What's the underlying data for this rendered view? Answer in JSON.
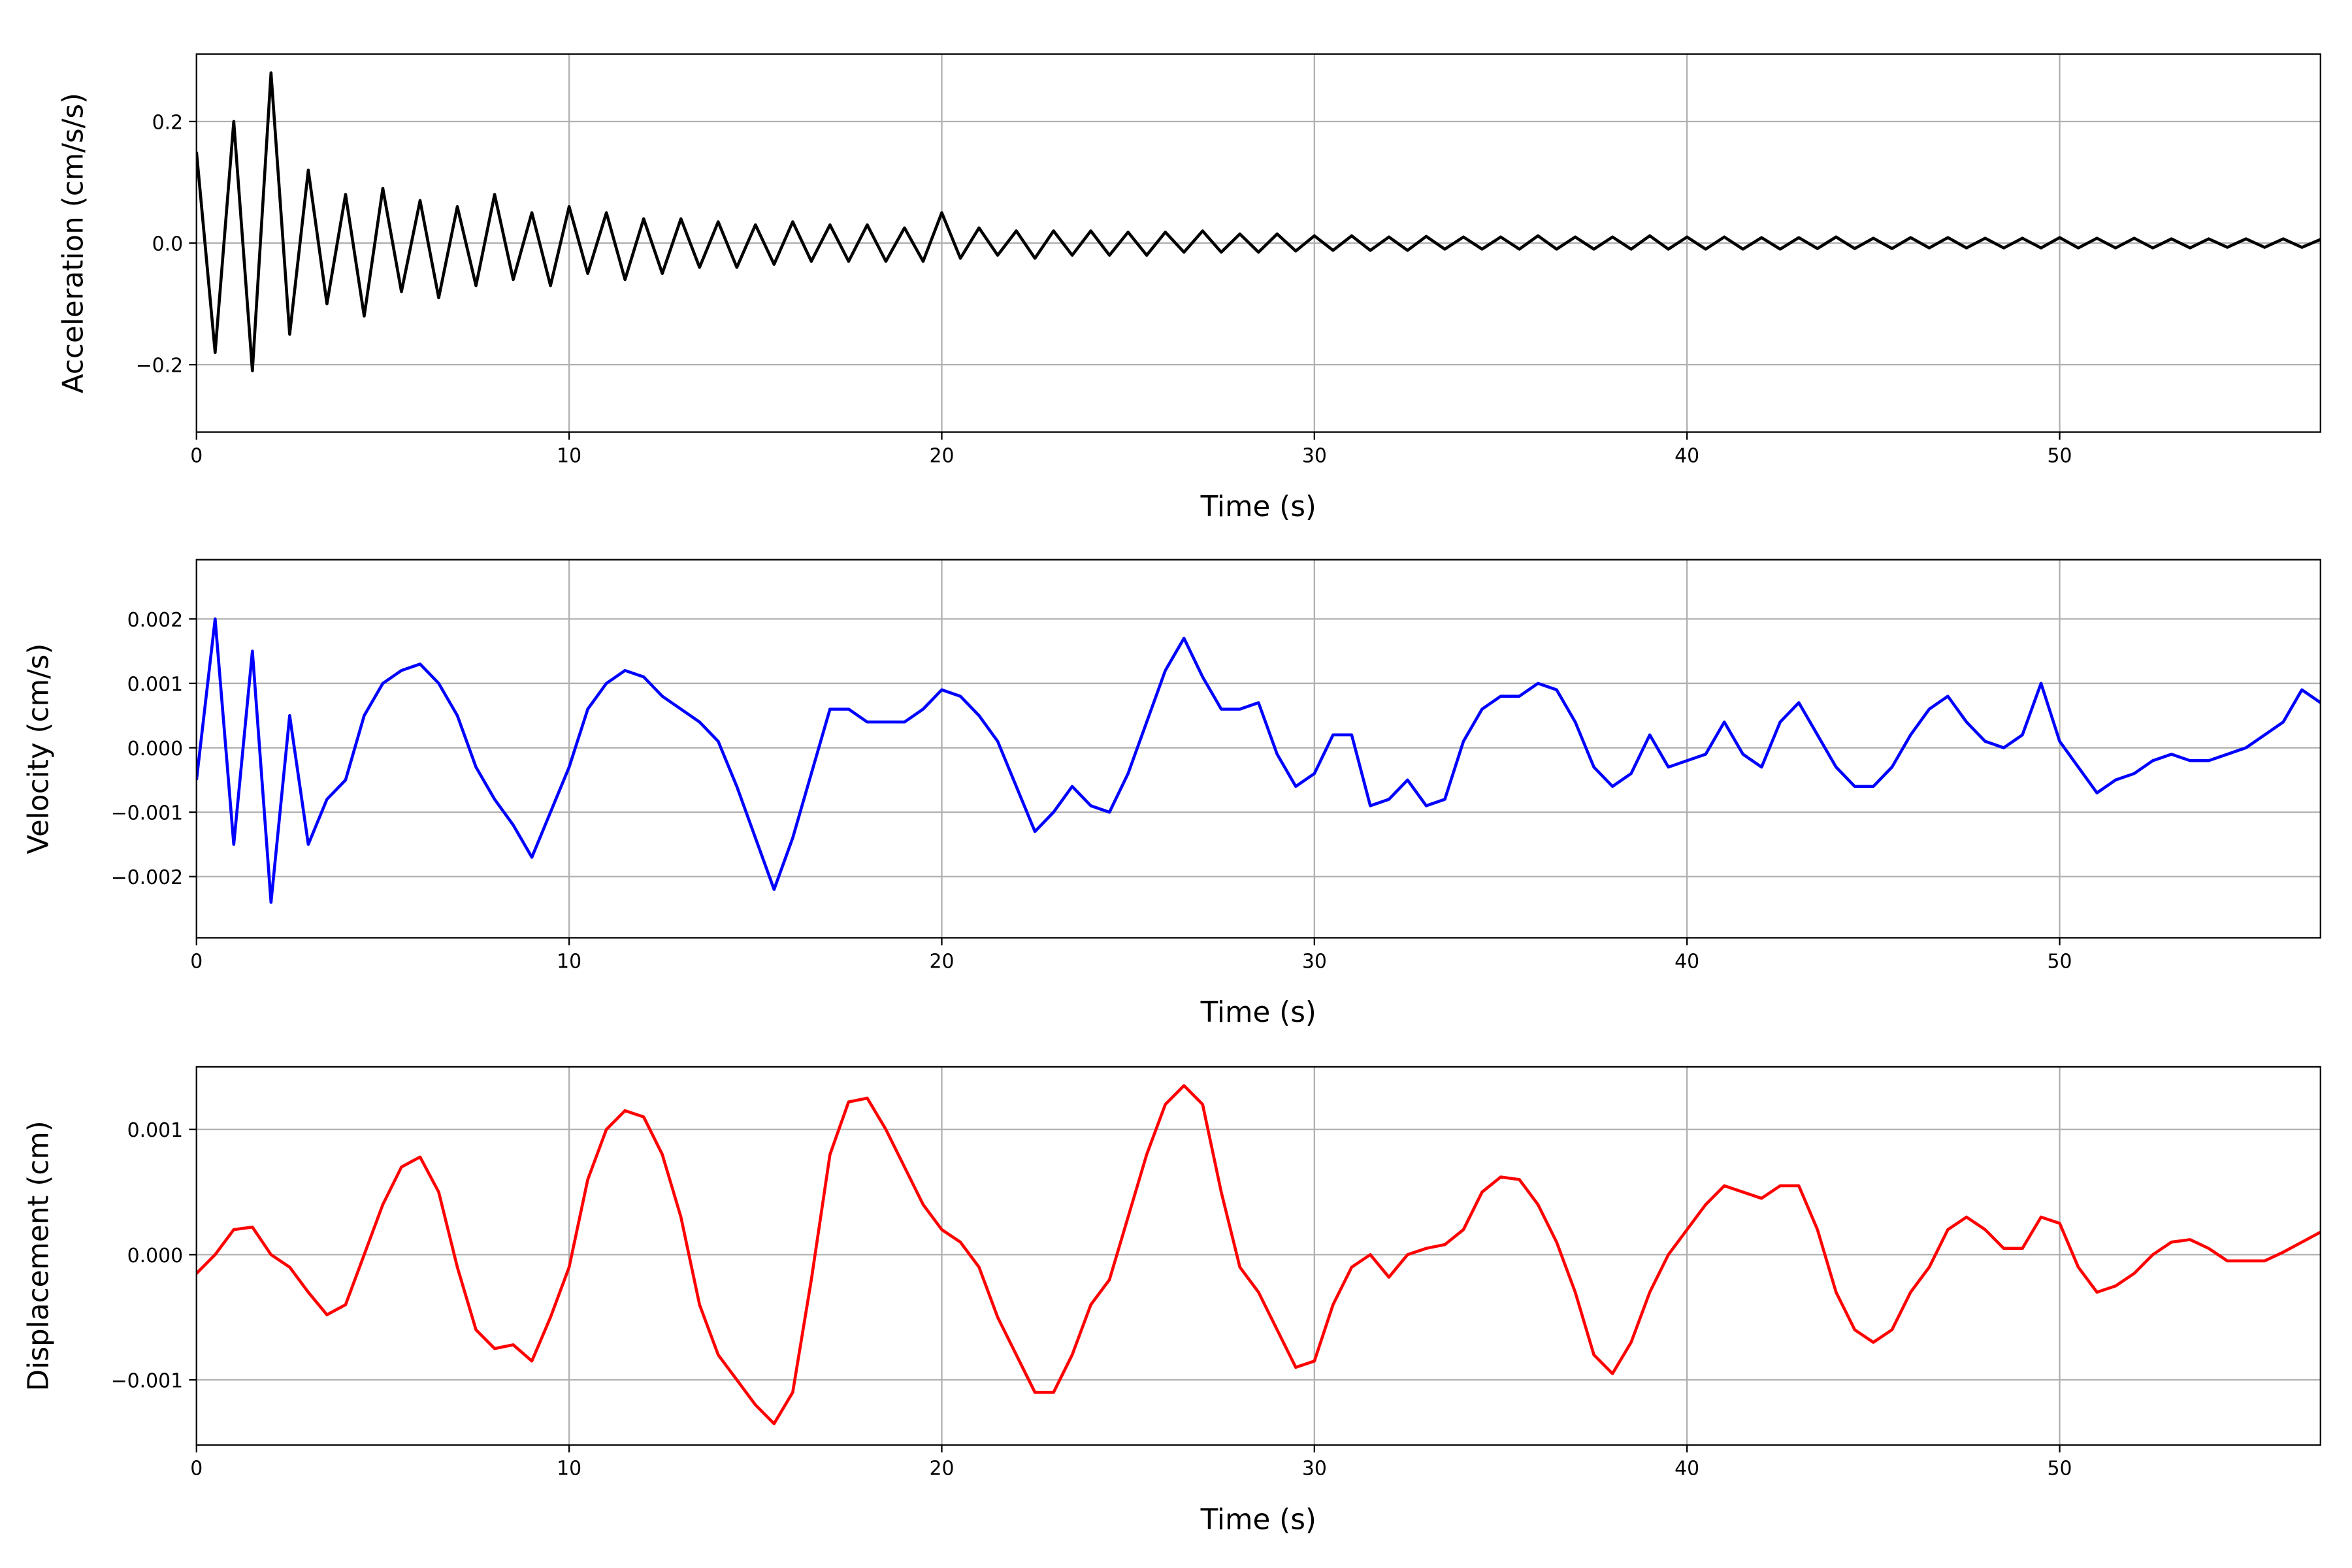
{
  "chart_data": [
    {
      "type": "line",
      "ylabel": "Acceleration (cm/s/s)",
      "xlabel": "Time (s)",
      "color": "#000000",
      "grid": true,
      "xlim": [
        0,
        57
      ],
      "xticks": [
        0,
        10,
        20,
        30,
        40,
        50
      ],
      "ylim": [
        -0.311,
        0.311
      ],
      "yticks": [
        {
          "value": -0.2,
          "label": "−0.2"
        },
        {
          "value": 0,
          "label": "0.0"
        },
        0.2
      ],
      "x": [
        0,
        0.5,
        1,
        1.5,
        2,
        2.5,
        3,
        3.5,
        4,
        4.5,
        5,
        5.5,
        6,
        6.5,
        7,
        7.5,
        8,
        8.5,
        9,
        9.5,
        10,
        10.5,
        11,
        11.5,
        12,
        12.5,
        13,
        13.5,
        14,
        14.5,
        15,
        15.5,
        16,
        16.5,
        17,
        17.5,
        18,
        18.5,
        19,
        19.5,
        20,
        20.5,
        21,
        21.5,
        22,
        22.5,
        23,
        23.5,
        24,
        24.5,
        25,
        25.5,
        26,
        26.5,
        27,
        27.5,
        28,
        28.5,
        29,
        29.5,
        30,
        30.5,
        31,
        31.5,
        32,
        32.5,
        33,
        33.5,
        34,
        34.5,
        35,
        35.5,
        36,
        36.5,
        37,
        37.5,
        38,
        38.5,
        39,
        39.5,
        40,
        40.5,
        41,
        41.5,
        42,
        42.5,
        43,
        43.5,
        44,
        44.5,
        45,
        45.5,
        46,
        46.5,
        47,
        47.5,
        48,
        48.5,
        49,
        49.5,
        50,
        50.5,
        51,
        51.5,
        52,
        52.5,
        53,
        53.5,
        54,
        54.5,
        55,
        55.5,
        56,
        56.5,
        57
      ],
      "values": [
        0.15,
        -0.18,
        0.2,
        -0.21,
        0.28,
        -0.15,
        0.12,
        -0.1,
        0.08,
        -0.12,
        0.09,
        -0.08,
        0.07,
        -0.09,
        0.06,
        -0.07,
        0.08,
        -0.06,
        0.05,
        -0.07,
        0.06,
        -0.05,
        0.05,
        -0.06,
        0.04,
        -0.05,
        0.04,
        -0.04,
        0.035,
        -0.04,
        0.03,
        -0.035,
        0.035,
        -0.03,
        0.03,
        -0.03,
        0.03,
        -0.03,
        0.025,
        -0.03,
        0.05,
        -0.025,
        0.025,
        -0.02,
        0.02,
        -0.025,
        0.02,
        -0.02,
        0.02,
        -0.02,
        0.018,
        -0.02,
        0.018,
        -0.015,
        0.02,
        -0.015,
        0.015,
        -0.015,
        0.015,
        -0.013,
        0.012,
        -0.012,
        0.012,
        -0.012,
        0.01,
        -0.012,
        0.011,
        -0.01,
        0.01,
        -0.01,
        0.01,
        -0.01,
        0.012,
        -0.01,
        0.01,
        -0.01,
        0.01,
        -0.01,
        0.012,
        -0.01,
        0.01,
        -0.01,
        0.01,
        -0.01,
        0.009,
        -0.01,
        0.009,
        -0.009,
        0.01,
        -0.009,
        0.008,
        -0.009,
        0.009,
        -0.008,
        0.009,
        -0.008,
        0.008,
        -0.008,
        0.008,
        -0.008,
        0.009,
        -0.008,
        0.008,
        -0.008,
        0.008,
        -0.008,
        0.007,
        -0.008,
        0.007,
        -0.007,
        0.007,
        -0.007,
        0.007,
        -0.007,
        0.006
      ]
    },
    {
      "type": "line",
      "ylabel": "Velocity (cm/s)",
      "xlabel": "Time (s)",
      "color": "#0000ff",
      "grid": true,
      "xlim": [
        0,
        57
      ],
      "xticks": [
        0,
        10,
        20,
        30,
        40,
        50
      ],
      "ylim": [
        -0.00295,
        0.00292
      ],
      "yticks": [
        {
          "value": -0.002,
          "label": "−0.002"
        },
        {
          "value": -0.001,
          "label": "−0.001"
        },
        {
          "value": 0,
          "label": "0.000"
        },
        0.001,
        0.002
      ],
      "x": [
        0,
        0.5,
        1,
        1.5,
        2,
        2.5,
        3,
        3.5,
        4,
        4.5,
        5,
        5.5,
        6,
        6.5,
        7,
        7.5,
        8,
        8.5,
        9,
        9.5,
        10,
        10.5,
        11,
        11.5,
        12,
        12.5,
        13,
        13.5,
        14,
        14.5,
        15,
        15.5,
        16,
        16.5,
        17,
        17.5,
        18,
        18.5,
        19,
        19.5,
        20,
        20.5,
        21,
        21.5,
        22,
        22.5,
        23,
        23.5,
        24,
        24.5,
        25,
        25.5,
        26,
        26.5,
        27,
        27.5,
        28,
        28.5,
        29,
        29.5,
        30,
        30.5,
        31,
        31.5,
        32,
        32.5,
        33,
        33.5,
        34,
        34.5,
        35,
        35.5,
        36,
        36.5,
        37,
        37.5,
        38,
        38.5,
        39,
        39.5,
        40,
        40.5,
        41,
        41.5,
        42,
        42.5,
        43,
        43.5,
        44,
        44.5,
        45,
        45.5,
        46,
        46.5,
        47,
        47.5,
        48,
        48.5,
        49,
        49.5,
        50,
        50.5,
        51,
        51.5,
        52,
        52.5,
        53,
        53.5,
        54,
        54.5,
        55,
        55.5,
        56,
        56.5,
        57
      ],
      "values": [
        -0.0005,
        0.002,
        -0.0015,
        0.0015,
        -0.0024,
        0.0005,
        -0.0015,
        -0.0008,
        -0.0005,
        0.0005,
        0.001,
        0.0012,
        0.0013,
        0.001,
        0.0005,
        -0.0003,
        -0.0008,
        -0.0012,
        -0.0017,
        -0.001,
        -0.0003,
        0.0006,
        0.001,
        0.0012,
        0.0011,
        0.0008,
        0.0006,
        0.0004,
        0.0001,
        -0.0006,
        -0.0014,
        -0.0022,
        -0.0014,
        -0.0004,
        0.0006,
        0.0006,
        0.0004,
        0.0004,
        0.0004,
        0.0006,
        0.0009,
        0.0008,
        0.0005,
        0.0001,
        -0.0006,
        -0.0013,
        -0.001,
        -0.0006,
        -0.0009,
        -0.001,
        -0.0004,
        0.0004,
        0.0012,
        0.0017,
        0.0011,
        0.0006,
        0.0006,
        0.0007,
        -0.0001,
        -0.0006,
        -0.0004,
        0.0002,
        0.0002,
        -0.0009,
        -0.0008,
        -0.0005,
        -0.0009,
        -0.0008,
        0.0001,
        0.0006,
        0.0008,
        0.0008,
        0.001,
        0.0009,
        0.0004,
        -0.0003,
        -0.0006,
        -0.0004,
        0.0002,
        -0.0003,
        -0.0002,
        -0.0001,
        0.0004,
        -0.0001,
        -0.0003,
        0.0004,
        0.0007,
        0.0002,
        -0.0003,
        -0.0006,
        -0.0006,
        -0.0003,
        0.0002,
        0.0006,
        0.0008,
        0.0004,
        0.0001,
        0,
        0.0002,
        0.001,
        0.0001,
        -0.0003,
        -0.0007,
        -0.0005,
        -0.0004,
        -0.0002,
        -0.0001,
        -0.0002,
        -0.0002,
        -0.0001,
        0,
        0.0002,
        0.0004,
        0.0009,
        0.0007
      ]
    },
    {
      "type": "line",
      "ylabel": "Displacement (cm)",
      "xlabel": "Time (s)",
      "color": "#ff0000",
      "grid": true,
      "xlim": [
        0,
        57
      ],
      "xticks": [
        0,
        10,
        20,
        30,
        40,
        50
      ],
      "ylim": [
        -0.00152,
        0.0015
      ],
      "yticks": [
        {
          "value": -0.001,
          "label": "−0.001"
        },
        {
          "value": 0,
          "label": "0.000"
        },
        0.001
      ],
      "x": [
        0,
        0.5,
        1,
        1.5,
        2,
        2.5,
        3,
        3.5,
        4,
        4.5,
        5,
        5.5,
        6,
        6.5,
        7,
        7.5,
        8,
        8.5,
        9,
        9.5,
        10,
        10.5,
        11,
        11.5,
        12,
        12.5,
        13,
        13.5,
        14,
        14.5,
        15,
        15.5,
        16,
        16.5,
        17,
        17.5,
        18,
        18.5,
        19,
        19.5,
        20,
        20.5,
        21,
        21.5,
        22,
        22.5,
        23,
        23.5,
        24,
        24.5,
        25,
        25.5,
        26,
        26.5,
        27,
        27.5,
        28,
        28.5,
        29,
        29.5,
        30,
        30.5,
        31,
        31.5,
        32,
        32.5,
        33,
        33.5,
        34,
        34.5,
        35,
        35.5,
        36,
        36.5,
        37,
        37.5,
        38,
        38.5,
        39,
        39.5,
        40,
        40.5,
        41,
        41.5,
        42,
        42.5,
        43,
        43.5,
        44,
        44.5,
        45,
        45.5,
        46,
        46.5,
        47,
        47.5,
        48,
        48.5,
        49,
        49.5,
        50,
        50.5,
        51,
        51.5,
        52,
        52.5,
        53,
        53.5,
        54,
        54.5,
        55,
        55.5,
        56,
        56.5,
        57
      ],
      "values": [
        -0.00015,
        0,
        0.0002,
        0.00022,
        0,
        -0.0001,
        -0.0003,
        -0.00048,
        -0.0004,
        0,
        0.0004,
        0.0007,
        0.00078,
        0.0005,
        -0.0001,
        -0.0006,
        -0.00075,
        -0.00072,
        -0.00085,
        -0.0005,
        -0.0001,
        0.0006,
        0.001,
        0.00115,
        0.0011,
        0.0008,
        0.0003,
        -0.0004,
        -0.0008,
        -0.001,
        -0.0012,
        -0.00135,
        -0.0011,
        -0.0002,
        0.0008,
        0.00122,
        0.00125,
        0.001,
        0.0007,
        0.0004,
        0.0002,
        0.0001,
        -0.0001,
        -0.0005,
        -0.0008,
        -0.0011,
        -0.0011,
        -0.0008,
        -0.0004,
        -0.0002,
        0.0003,
        0.0008,
        0.0012,
        0.00135,
        0.0012,
        0.0005,
        -0.0001,
        -0.0003,
        -0.0006,
        -0.0009,
        -0.00085,
        -0.0004,
        -0.0001,
        0,
        -0.00018,
        0,
        5e-05,
        8e-05,
        0.0002,
        0.0005,
        0.00062,
        0.0006,
        0.0004,
        0.0001,
        -0.0003,
        -0.0008,
        -0.00095,
        -0.0007,
        -0.0003,
        0,
        0.0002,
        0.0004,
        0.00055,
        0.0005,
        0.00045,
        0.00055,
        0.00055,
        0.0002,
        -0.0003,
        -0.0006,
        -0.0007,
        -0.0006,
        -0.0003,
        -0.0001,
        0.0002,
        0.0003,
        0.0002,
        5e-05,
        5e-05,
        0.0003,
        0.00025,
        -0.0001,
        -0.0003,
        -0.00025,
        -0.00015,
        0,
        0.0001,
        0.00012,
        5e-05,
        -5e-05,
        -5e-05,
        -5e-05,
        2e-05,
        0.0001,
        0.00018
      ]
    }
  ]
}
